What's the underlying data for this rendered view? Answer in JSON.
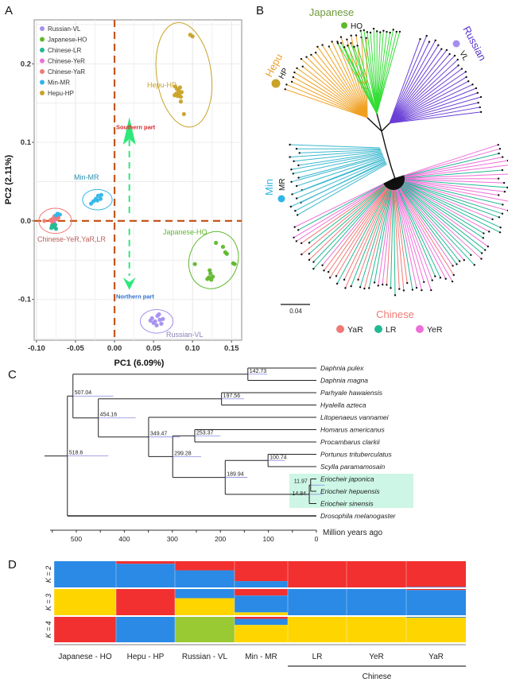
{
  "panels": {
    "a": "A",
    "b": "B",
    "c": "C",
    "d": "D"
  },
  "colors": {
    "russian": "#a58ef0",
    "japanese": "#5fb82c",
    "lr": "#22b893",
    "yer": "#ee6fd8",
    "yar": "#f07a76",
    "min": "#2fb5e8",
    "hepu": "#c9a227",
    "dashed_axis": "#c4561c",
    "arrow": "#2ee87a",
    "southern": "#d8262a",
    "northern": "#2f6fd0",
    "tree_hepu": "#f0a020",
    "tree_japanese": "#33dd33",
    "tree_russian": "#6a3fd6",
    "tree_min": "#3bb8d0",
    "highlight": "#cdf6e6",
    "eriocheir": "#d8507a",
    "k_red": "#f2302f",
    "k_blue": "#2a8ae6",
    "k_yellow": "#ffd500",
    "k_green": "#99c933"
  },
  "chart_data": [
    {
      "type": "scatter",
      "xlabel": "PC1 (6.09%)",
      "ylabel": "PC2 (2.11%)",
      "xlim": [
        -0.103,
        0.163
      ],
      "ylim": [
        -0.152,
        0.256
      ],
      "xticks": [
        "-0.10",
        "-0.05",
        "0.00",
        "0.05",
        "0.10",
        "0.15"
      ],
      "xtick_values": [
        -0.1,
        -0.05,
        0,
        0.05,
        0.1,
        0.15
      ],
      "yticks": [
        "-0.1",
        "0.0",
        "0.1",
        "0.2"
      ],
      "ytick_values": [
        -0.1,
        0,
        0.1,
        0.2
      ],
      "grid": true,
      "legend_position": "top-left",
      "legend": [
        "Russian-VL",
        "Japanese-HO",
        "Chinese-LR",
        "Chinese-YeR",
        "Chinese-YaR",
        "Min-MR",
        "Hepu-HP"
      ],
      "series": [
        {
          "name": "Russian-VL",
          "color_key": "russian",
          "points": [
            [
              0.048,
              -0.124
            ],
            [
              0.052,
              -0.128
            ],
            [
              0.055,
              -0.121
            ],
            [
              0.058,
              -0.126
            ],
            [
              0.06,
              -0.131
            ],
            [
              0.054,
              -0.133
            ],
            [
              0.05,
              -0.13
            ],
            [
              0.057,
              -0.119
            ],
            [
              0.062,
              -0.125
            ],
            [
              0.046,
              -0.127
            ]
          ]
        },
        {
          "name": "Japanese-HO",
          "color_key": "japanese",
          "points": [
            [
              0.13,
              -0.028
            ],
            [
              0.139,
              -0.033
            ],
            [
              0.142,
              -0.04
            ],
            [
              0.144,
              -0.042
            ],
            [
              0.152,
              -0.054
            ],
            [
              0.154,
              -0.055
            ],
            [
              0.103,
              -0.055
            ],
            [
              0.122,
              -0.063
            ],
            [
              0.123,
              -0.067
            ],
            [
              0.121,
              -0.072
            ],
            [
              0.126,
              -0.071
            ],
            [
              0.119,
              -0.074
            ],
            [
              0.124,
              -0.075
            ]
          ]
        },
        {
          "name": "Chinese-LR",
          "color_key": "lr",
          "points": [
            [
              -0.08,
              -0.006
            ],
            [
              -0.077,
              -0.008
            ],
            [
              -0.079,
              -0.004
            ],
            [
              -0.075,
              -0.01
            ],
            [
              -0.078,
              -0.002
            ],
            [
              -0.076,
              -0.005
            ],
            [
              -0.081,
              -0.009
            ]
          ]
        },
        {
          "name": "Chinese-YeR",
          "color_key": "yer",
          "points": [
            [
              -0.076,
              0.002
            ],
            [
              -0.074,
              0.004
            ],
            [
              -0.078,
              0.0
            ]
          ]
        },
        {
          "name": "Chinese-YaR",
          "color_key": "yar",
          "points": [
            [
              -0.09,
              0.0
            ],
            [
              -0.082,
              0.001
            ],
            [
              -0.079,
              0.003
            ],
            [
              -0.077,
              0.006
            ],
            [
              -0.074,
              0.002
            ],
            [
              -0.072,
              0.004
            ],
            [
              -0.08,
              -0.001
            ]
          ]
        },
        {
          "name": "Min-MR",
          "color_key": "min",
          "points": [
            [
              -0.03,
              0.022
            ],
            [
              -0.027,
              0.025
            ],
            [
              -0.024,
              0.028
            ],
            [
              -0.021,
              0.032
            ],
            [
              -0.017,
              0.033
            ],
            [
              -0.018,
              0.028
            ],
            [
              -0.022,
              0.026
            ],
            [
              -0.073,
              0.009
            ],
            [
              -0.07,
              0.008
            ],
            [
              -0.075,
              0.007
            ]
          ]
        },
        {
          "name": "Hepu-HP",
          "color_key": "hepu",
          "points": [
            [
              0.097,
              0.237
            ],
            [
              0.1,
              0.235
            ],
            [
              0.078,
              0.171
            ],
            [
              0.08,
              0.168
            ],
            [
              0.082,
              0.166
            ],
            [
              0.084,
              0.17
            ],
            [
              0.086,
              0.164
            ],
            [
              0.079,
              0.162
            ],
            [
              0.081,
              0.159
            ],
            [
              0.085,
              0.158
            ],
            [
              0.077,
              0.16
            ],
            [
              0.083,
              0.162
            ],
            [
              0.085,
              0.152
            ],
            [
              0.089,
              0.136
            ]
          ]
        }
      ],
      "ellipses": [
        {
          "label": "Hepu-HP",
          "color_key": "hepu",
          "center": [
            0.089,
            0.186
          ],
          "radii": [
            0.035,
            0.067
          ]
        },
        {
          "label": "Min-MR",
          "color_key": "min",
          "center": [
            -0.022,
            0.027
          ],
          "radii": [
            0.019,
            0.013
          ]
        },
        {
          "label": "Chinese-YeR,YaR,LR",
          "color_key": "yar",
          "center": [
            -0.076,
            0.0
          ],
          "radii": [
            0.021,
            0.016
          ]
        },
        {
          "label": "Japanese-HO",
          "color_key": "japanese",
          "center": [
            0.127,
            -0.05
          ],
          "radii": [
            0.031,
            0.037
          ]
        },
        {
          "label": "Russian-VL",
          "color_key": "russian",
          "center": [
            0.054,
            -0.128
          ],
          "radii": [
            0.021,
            0.015
          ]
        }
      ],
      "annotations": {
        "southern": "Southern part",
        "northern": "Northern part"
      }
    },
    {
      "type": "tree",
      "clades": [
        {
          "label": "Japanese",
          "code": "HO"
        },
        {
          "label": "Russian",
          "code": "VL"
        },
        {
          "label": "Hepu",
          "code": "HP"
        },
        {
          "label": "Min",
          "code": "MR"
        },
        {
          "label": "Chinese"
        }
      ],
      "legend": [
        "YaR",
        "LR",
        "YeR"
      ],
      "scale_bar": "0.04"
    },
    {
      "type": "tree",
      "xlabel": "Million years ago",
      "xticks": [
        500,
        400,
        300,
        200,
        100,
        0
      ],
      "taxa": [
        "Daphnia pulex",
        "Daphnia magna",
        "Parhyale hawaiensis",
        "Hyalella azteca",
        "Litopenaeus vannamei",
        "Homarus americanus",
        "Procambarus clarkii",
        "Portunus trituberculatus",
        "Scylla paramamosain",
        "Eriocheir japonica",
        "Eriocheir hepuensis",
        "Eriocheir sinensis",
        "Drosophila melanogaster"
      ],
      "highlighted_taxa": [
        "Eriocheir japonica",
        "Eriocheir hepuensis",
        "Eriocheir sinensis"
      ],
      "nodes": [
        {
          "id": "n1",
          "age": 142.73,
          "label": "142.73",
          "children": [
            "Daphnia pulex",
            "Daphnia magna"
          ]
        },
        {
          "id": "n2",
          "age": 197.56,
          "label": "197.56",
          "children": [
            "Parhyale hawaiensis",
            "Hyalella azteca"
          ]
        },
        {
          "id": "n3",
          "age": 253.37,
          "label": "253.37",
          "children": [
            "Homarus americanus",
            "Procambarus clarkii"
          ]
        },
        {
          "id": "n4",
          "age": 100.74,
          "label": "100.74",
          "children": [
            "Portunus trituberculatus",
            "Scylla paramamosain"
          ]
        },
        {
          "id": "n5",
          "age": 11.97,
          "label": "11.97",
          "children": [
            "Eriocheir japonica",
            "Eriocheir hepuensis"
          ]
        },
        {
          "id": "n6",
          "age": 14.84,
          "label": "14.84",
          "children": [
            "n5",
            "Eriocheir sinensis"
          ]
        },
        {
          "id": "n7",
          "age": 189.94,
          "label": "189.94",
          "children": [
            "n4",
            "n6"
          ]
        },
        {
          "id": "n8",
          "age": 299.28,
          "label": "299.28",
          "children": [
            "n3",
            "n7"
          ]
        },
        {
          "id": "n9",
          "age": 349.47,
          "label": "349.47",
          "children": [
            "Litopenaeus vannamei",
            "n8"
          ]
        },
        {
          "id": "n10",
          "age": 454.16,
          "label": "454.16",
          "children": [
            "n2",
            "n9"
          ]
        },
        {
          "id": "n11",
          "age": 507.04,
          "label": "507.04",
          "children": [
            "n1",
            "n10"
          ]
        },
        {
          "id": "n12",
          "age": 518.6,
          "label": "518.6",
          "children": [
            "n11",
            "Drosophila melanogaster"
          ]
        }
      ]
    },
    {
      "type": "stacked_bar",
      "groups": [
        "Japanese - HO",
        "Hepu - HP",
        "Russian - VL",
        "Min - MR",
        "LR",
        "YeR",
        "YaR"
      ],
      "supergroup": {
        "label": "Chinese",
        "members": [
          "LR",
          "YeR",
          "YaR"
        ]
      },
      "rows": [
        {
          "label": "K = 2",
          "components": [
            "k_red",
            "k_blue"
          ],
          "proportions": [
            [
              0.0,
              1.0
            ],
            [
              0.1,
              0.9
            ],
            [
              0.35,
              0.65
            ],
            [
              0.76,
              0.24
            ],
            [
              1.0,
              0.0
            ],
            [
              1.0,
              0.0
            ],
            [
              0.98,
              0.02
            ]
          ]
        },
        {
          "label": "K = 3",
          "components": [
            "k_red",
            "k_blue",
            "k_yellow"
          ],
          "proportions": [
            [
              0.0,
              0.0,
              1.0
            ],
            [
              1.0,
              0.0,
              0.0
            ],
            [
              0.0,
              0.35,
              0.65
            ],
            [
              0.25,
              0.64,
              0.11
            ],
            [
              0.0,
              1.0,
              0.0
            ],
            [
              0.0,
              1.0,
              0.0
            ],
            [
              0.04,
              0.96,
              0.0
            ]
          ]
        },
        {
          "label": "K = 4",
          "components": [
            "k_red",
            "k_blue",
            "k_green",
            "k_yellow"
          ],
          "proportions": [
            [
              1.0,
              0.0,
              0.0,
              0.0
            ],
            [
              0.0,
              1.0,
              0.0,
              0.0
            ],
            [
              0.0,
              0.0,
              1.0,
              0.0
            ],
            [
              0.08,
              0.24,
              0.0,
              0.68
            ],
            [
              0.0,
              0.0,
              0.0,
              1.0
            ],
            [
              0.0,
              0.0,
              0.0,
              1.0
            ],
            [
              0.0,
              0.03,
              0.0,
              0.97
            ]
          ]
        }
      ]
    }
  ]
}
